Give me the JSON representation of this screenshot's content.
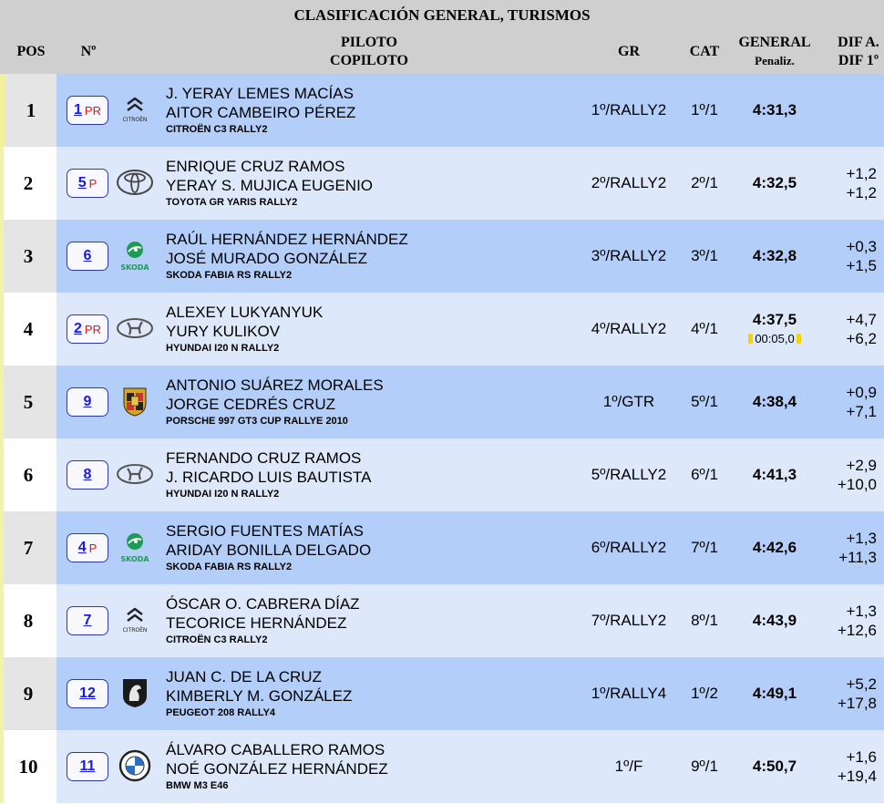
{
  "title": "CLASIFICACIÓN GENERAL, TURISMOS",
  "headers": {
    "pos": "POS",
    "num": "Nº",
    "piloto": "PILOTO",
    "copiloto": "COPILOTO",
    "gr": "GR",
    "cat": "CAT",
    "general": "GENERAL",
    "penaliz": "Penaliz.",
    "dif_a": "DIF A.",
    "dif_1": "DIF 1º"
  },
  "rows": [
    {
      "pos": "1",
      "num": "1",
      "badge": "PR",
      "brand": "citroen",
      "brand_text": "CITROËN",
      "piloto": "J. YERAY LEMES MACÍAS",
      "copiloto": "AITOR CAMBEIRO PÉREZ",
      "car": "CITROËN C3 RALLY2",
      "gr": "1º/RALLY2",
      "cat": "1º/1",
      "time": "4:31,3",
      "penalty": "",
      "dif_a": "",
      "dif_1": ""
    },
    {
      "pos": "2",
      "num": "5",
      "badge": "P",
      "brand": "toyota",
      "brand_text": "",
      "piloto": "ENRIQUE CRUZ RAMOS",
      "copiloto": "YERAY S. MUJICA EUGENIO",
      "car": "TOYOTA GR YARIS RALLY2",
      "gr": "2º/RALLY2",
      "cat": "2º/1",
      "time": "4:32,5",
      "penalty": "",
      "dif_a": "+1,2",
      "dif_1": "+1,2"
    },
    {
      "pos": "3",
      "num": "6",
      "badge": "",
      "brand": "skoda",
      "brand_text": "SKODA",
      "piloto": "RAÚL HERNÁNDEZ HERNÁNDEZ",
      "copiloto": "JOSÉ MURADO GONZÁLEZ",
      "car": "SKODA FABIA RS RALLY2",
      "gr": "3º/RALLY2",
      "cat": "3º/1",
      "time": "4:32,8",
      "penalty": "",
      "dif_a": "+0,3",
      "dif_1": "+1,5"
    },
    {
      "pos": "4",
      "num": "2",
      "badge": "PR",
      "brand": "hyundai",
      "brand_text": "",
      "piloto": "ALEXEY LUKYANYUK",
      "copiloto": "YURY KULIKOV",
      "car": "HYUNDAI I20 N RALLY2",
      "gr": "4º/RALLY2",
      "cat": "4º/1",
      "time": "4:37,5",
      "penalty": "00:05,0",
      "dif_a": "+4,7",
      "dif_1": "+6,2"
    },
    {
      "pos": "5",
      "num": "9",
      "badge": "",
      "brand": "porsche",
      "brand_text": "",
      "piloto": "ANTONIO SUÁREZ MORALES",
      "copiloto": "JORGE CEDRÉS CRUZ",
      "car": "PORSCHE 997 GT3 CUP RALLYE 2010",
      "gr": "1º/GTR",
      "cat": "5º/1",
      "time": "4:38,4",
      "penalty": "",
      "dif_a": "+0,9",
      "dif_1": "+7,1"
    },
    {
      "pos": "6",
      "num": "8",
      "badge": "",
      "brand": "hyundai",
      "brand_text": "",
      "piloto": "FERNANDO CRUZ RAMOS",
      "copiloto": "J. RICARDO LUIS BAUTISTA",
      "car": "HYUNDAI I20 N RALLY2",
      "gr": "5º/RALLY2",
      "cat": "6º/1",
      "time": "4:41,3",
      "penalty": "",
      "dif_a": "+2,9",
      "dif_1": "+10,0"
    },
    {
      "pos": "7",
      "num": "4",
      "badge": "P",
      "brand": "skoda",
      "brand_text": "SKODA",
      "piloto": "SERGIO FUENTES MATÍAS",
      "copiloto": "ARIDAY BONILLA DELGADO",
      "car": "SKODA FABIA RS RALLY2",
      "gr": "6º/RALLY2",
      "cat": "7º/1",
      "time": "4:42,6",
      "penalty": "",
      "dif_a": "+1,3",
      "dif_1": "+11,3"
    },
    {
      "pos": "8",
      "num": "7",
      "badge": "",
      "brand": "citroen",
      "brand_text": "CITROËN",
      "piloto": "ÓSCAR O. CABRERA DÍAZ",
      "copiloto": "TECORICE HERNÁNDEZ",
      "car": "CITROËN C3 RALLY2",
      "gr": "7º/RALLY2",
      "cat": "8º/1",
      "time": "4:43,9",
      "penalty": "",
      "dif_a": "+1,3",
      "dif_1": "+12,6"
    },
    {
      "pos": "9",
      "num": "12",
      "badge": "",
      "brand": "peugeot",
      "brand_text": "",
      "piloto": "JUAN C. DE LA CRUZ",
      "copiloto": "KIMBERLY M. GONZÁLEZ",
      "car": "PEUGEOT 208 RALLY4",
      "gr": "1º/RALLY4",
      "cat": "1º/2",
      "time": "4:49,1",
      "penalty": "",
      "dif_a": "+5,2",
      "dif_1": "+17,8"
    },
    {
      "pos": "10",
      "num": "11",
      "badge": "",
      "brand": "bmw",
      "brand_text": "",
      "piloto": "ÁLVARO CABALLERO RAMOS",
      "copiloto": "NOÉ GONZÁLEZ HERNÁNDEZ",
      "car": "BMW M3 E46",
      "gr": "1º/F",
      "cat": "9º/1",
      "time": "4:50,7",
      "penalty": "",
      "dif_a": "+1,6",
      "dif_1": "+19,4"
    }
  ]
}
